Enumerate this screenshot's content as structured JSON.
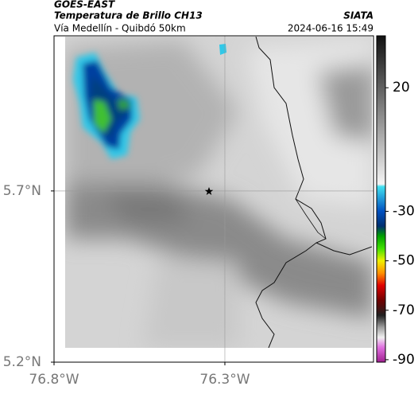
{
  "header": {
    "title": "GOES-EAST",
    "subtitle": "Temperatura de Brillo CH13",
    "source": "SIATA",
    "route": "Vía Medellín - Quibdó 50km",
    "timestamp": "2024-06-16 15:49"
  },
  "map": {
    "xlim": [
      -76.8,
      -75.865
    ],
    "ylim": [
      5.2,
      6.153
    ],
    "xticks": [
      {
        "value": -76.8,
        "label": "76.8°W"
      },
      {
        "value": -76.3,
        "label": "76.3°W"
      }
    ],
    "yticks": [
      {
        "value": 5.7,
        "label": "5.7°N"
      },
      {
        "value": 5.2,
        "label": "5.2°N"
      }
    ],
    "grid": true
  },
  "colorbar": {
    "lim": [
      -91,
      41
    ],
    "ticks": [
      20,
      -30,
      -50,
      -70,
      -90
    ],
    "stops": [
      {
        "value": 41,
        "color": "#111111"
      },
      {
        "value": -19,
        "color": "#f4f4f4"
      },
      {
        "value": -20,
        "color": "#40e0f0"
      },
      {
        "value": -30,
        "color": "#0050c0"
      },
      {
        "value": -36,
        "color": "#003070"
      },
      {
        "value": -40,
        "color": "#00a000"
      },
      {
        "value": -45,
        "color": "#40e000"
      },
      {
        "value": -50,
        "color": "#f0f000"
      },
      {
        "value": -55,
        "color": "#ff9000"
      },
      {
        "value": -60,
        "color": "#e00000"
      },
      {
        "value": -66,
        "color": "#700000"
      },
      {
        "value": -72,
        "color": "#202020"
      },
      {
        "value": -77,
        "color": "#a0a0a0"
      },
      {
        "value": -81,
        "color": "#f0f0f0"
      },
      {
        "value": -85,
        "color": "#e070e0"
      },
      {
        "value": -91,
        "color": "#a02090"
      }
    ]
  }
}
